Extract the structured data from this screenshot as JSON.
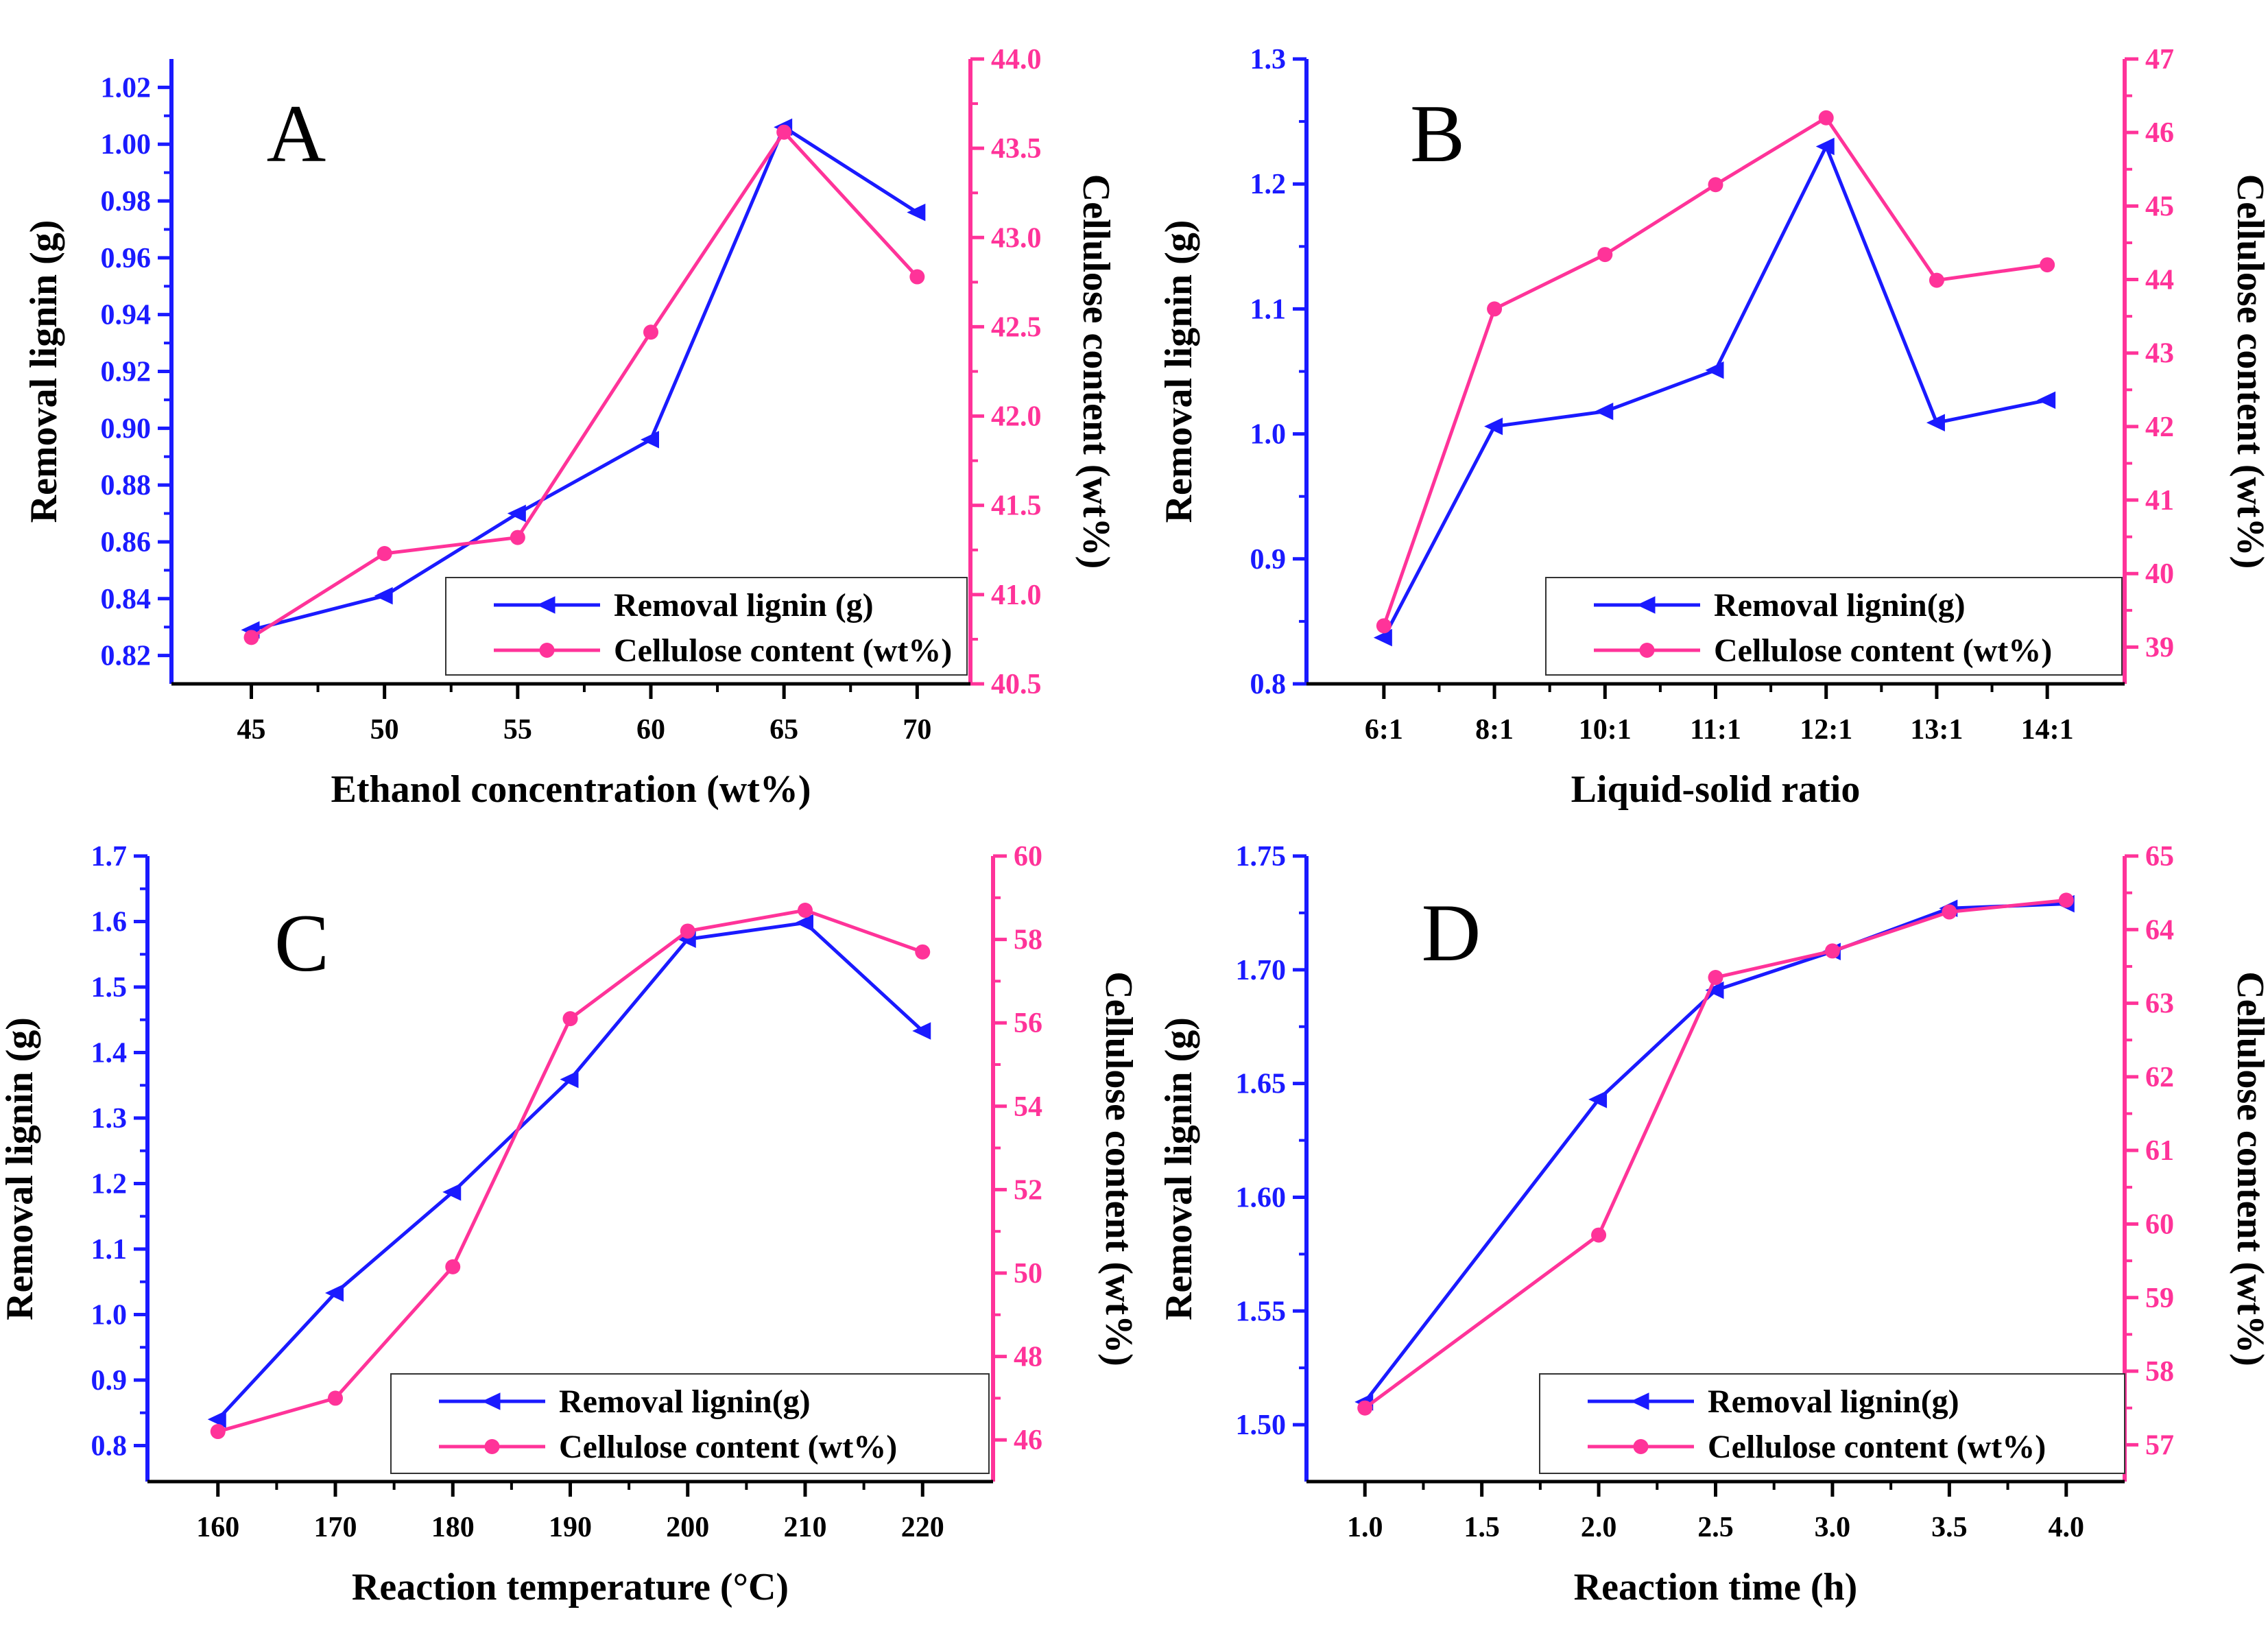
{
  "colors": {
    "lignin": "#1a1aff",
    "cellulose": "#ff3399",
    "axis": "#000000"
  },
  "chart_data": [
    {
      "type": "line",
      "panel_label": "A",
      "xlabel": "Ethanol concentration (wt%)",
      "ylabel_left": "Removal lignin (g)",
      "ylabel_right": "Cellulose content (wt%)",
      "x_scale": "linear",
      "xlim": [
        42,
        72
      ],
      "x_ticks": [
        45,
        50,
        55,
        60,
        65,
        70
      ],
      "x_tick_labels": [
        "45",
        "50",
        "55",
        "60",
        "65",
        "70"
      ],
      "y_left_lim": [
        0.81,
        1.03
      ],
      "y_left_ticks": [
        0.82,
        0.84,
        0.86,
        0.88,
        0.9,
        0.92,
        0.94,
        0.96,
        0.98,
        1.0,
        1.02
      ],
      "y_left_tick_labels": [
        "0.82",
        "0.84",
        "0.86",
        "0.88",
        "0.90",
        "0.92",
        "0.94",
        "0.96",
        "0.98",
        "1.00",
        "1.02"
      ],
      "y_right_lim": [
        40.5,
        44.0
      ],
      "y_right_ticks": [
        40.5,
        41.0,
        41.5,
        42.0,
        42.5,
        43.0,
        43.5,
        44.0
      ],
      "y_right_tick_labels": [
        "40.5",
        "41.0",
        "41.5",
        "42.0",
        "42.5",
        "43.0",
        "43.5",
        "44.0"
      ],
      "x": [
        45,
        50,
        55,
        60,
        65,
        70
      ],
      "series": [
        {
          "name": "Removal lignin (g)",
          "axis": "left",
          "marker": "triangle-left",
          "values": [
            0.829,
            0.841,
            0.87,
            0.896,
            1.006,
            0.976
          ]
        },
        {
          "name": "Cellulose content (wt%)",
          "axis": "right",
          "marker": "circle",
          "values": [
            40.76,
            41.23,
            41.32,
            42.47,
            43.59,
            42.78
          ]
        }
      ],
      "legend_position": "bottom-right"
    },
    {
      "type": "line",
      "panel_label": "B",
      "xlabel": "Liquid-solid ratio",
      "ylabel_left": "Removal lignin (g)",
      "ylabel_right": "Cellulose content (wt%)",
      "x_scale": "categorical",
      "xlim": [
        -0.7,
        6.7
      ],
      "x_ticks": [
        0,
        1,
        2,
        3,
        4,
        5,
        6
      ],
      "x_tick_labels": [
        "6:1",
        "8:1",
        "10:1",
        "11:1",
        "12:1",
        "13:1",
        "14:1"
      ],
      "y_left_lim": [
        0.8,
        1.3
      ],
      "y_left_ticks": [
        0.8,
        0.9,
        1.0,
        1.1,
        1.2,
        1.3
      ],
      "y_left_tick_labels": [
        "0.8",
        "0.9",
        "1.0",
        "1.1",
        "1.2",
        "1.3"
      ],
      "y_right_lim": [
        38.5,
        47
      ],
      "y_right_ticks": [
        39,
        40,
        41,
        42,
        43,
        44,
        45,
        46,
        47
      ],
      "y_right_tick_labels": [
        "39",
        "40",
        "41",
        "42",
        "43",
        "44",
        "45",
        "46",
        "47"
      ],
      "x": [
        0,
        1,
        2,
        3,
        4,
        5,
        6
      ],
      "series": [
        {
          "name": "Removal lignin(g)",
          "axis": "left",
          "marker": "triangle-left",
          "values": [
            0.837,
            1.006,
            1.018,
            1.051,
            1.23,
            1.009,
            1.027
          ]
        },
        {
          "name": "Cellulose content (wt%)",
          "axis": "right",
          "marker": "circle",
          "values": [
            39.29,
            43.6,
            44.34,
            45.29,
            46.2,
            43.99,
            44.2
          ]
        }
      ],
      "legend_position": "bottom-right"
    },
    {
      "type": "line",
      "panel_label": "C",
      "xlabel": "Reaction temperature (°C)",
      "ylabel_left": "Removal lignin (g)",
      "ylabel_right": "Cellulose content (wt%)",
      "x_scale": "linear",
      "xlim": [
        154,
        226
      ],
      "x_ticks": [
        160,
        170,
        180,
        190,
        200,
        210,
        220
      ],
      "x_tick_labels": [
        "160",
        "170",
        "180",
        "190",
        "200",
        "210",
        "220"
      ],
      "y_left_lim": [
        0.745,
        1.7
      ],
      "y_left_ticks": [
        0.8,
        0.9,
        1.0,
        1.1,
        1.2,
        1.3,
        1.4,
        1.5,
        1.6,
        1.7
      ],
      "y_left_tick_labels": [
        "0.8",
        "0.9",
        "1.0",
        "1.1",
        "1.2",
        "1.3",
        "1.4",
        "1.5",
        "1.6",
        "1.7"
      ],
      "y_right_lim": [
        45,
        60
      ],
      "y_right_ticks": [
        46,
        48,
        50,
        52,
        54,
        56,
        58,
        60
      ],
      "y_right_tick_labels": [
        "46",
        "48",
        "50",
        "52",
        "54",
        "56",
        "58",
        "60"
      ],
      "x": [
        160,
        170,
        180,
        190,
        200,
        210,
        220
      ],
      "series": [
        {
          "name": "Removal lignin(g)",
          "axis": "left",
          "marker": "triangle-left",
          "values": [
            0.84,
            1.033,
            1.187,
            1.359,
            1.573,
            1.598,
            1.433
          ]
        },
        {
          "name": "Cellulose content (wt%)",
          "axis": "right",
          "marker": "circle",
          "values": [
            46.2,
            47.0,
            50.15,
            56.1,
            58.2,
            58.7,
            57.7
          ]
        }
      ],
      "legend_position": "bottom-right"
    },
    {
      "type": "line",
      "panel_label": "D",
      "xlabel": "Reaction time (h)",
      "ylabel_left": "Removal lignin (g)",
      "ylabel_right": "Cellulose content (wt%)",
      "x_scale": "linear",
      "xlim": [
        0.75,
        4.25
      ],
      "x_ticks": [
        1.0,
        1.5,
        2.0,
        2.5,
        3.0,
        3.5,
        4.0
      ],
      "x_tick_labels": [
        "1.0",
        "1.5",
        "2.0",
        "2.5",
        "3.0",
        "3.5",
        "4.0"
      ],
      "y_left_lim": [
        1.475,
        1.75
      ],
      "y_left_ticks": [
        1.5,
        1.55,
        1.6,
        1.65,
        1.7,
        1.75
      ],
      "y_left_tick_labels": [
        "1.50",
        "1.55",
        "1.60",
        "1.65",
        "1.70",
        "1.75"
      ],
      "y_right_lim": [
        56.5,
        65
      ],
      "y_right_ticks": [
        57,
        58,
        59,
        60,
        61,
        62,
        63,
        64,
        65
      ],
      "y_right_tick_labels": [
        "57",
        "58",
        "59",
        "60",
        "61",
        "62",
        "63",
        "64",
        "65"
      ],
      "x": [
        1.0,
        2.0,
        2.5,
        3.0,
        3.5,
        4.0
      ],
      "series": [
        {
          "name": "Removal lignin(g)",
          "axis": "left",
          "marker": "triangle-left",
          "values": [
            1.51,
            1.643,
            1.691,
            1.708,
            1.727,
            1.729
          ]
        },
        {
          "name": "Cellulose content (wt%)",
          "axis": "right",
          "marker": "circle",
          "values": [
            57.5,
            59.85,
            63.35,
            63.71,
            64.24,
            64.4
          ]
        }
      ],
      "legend_position": "bottom-right"
    }
  ]
}
